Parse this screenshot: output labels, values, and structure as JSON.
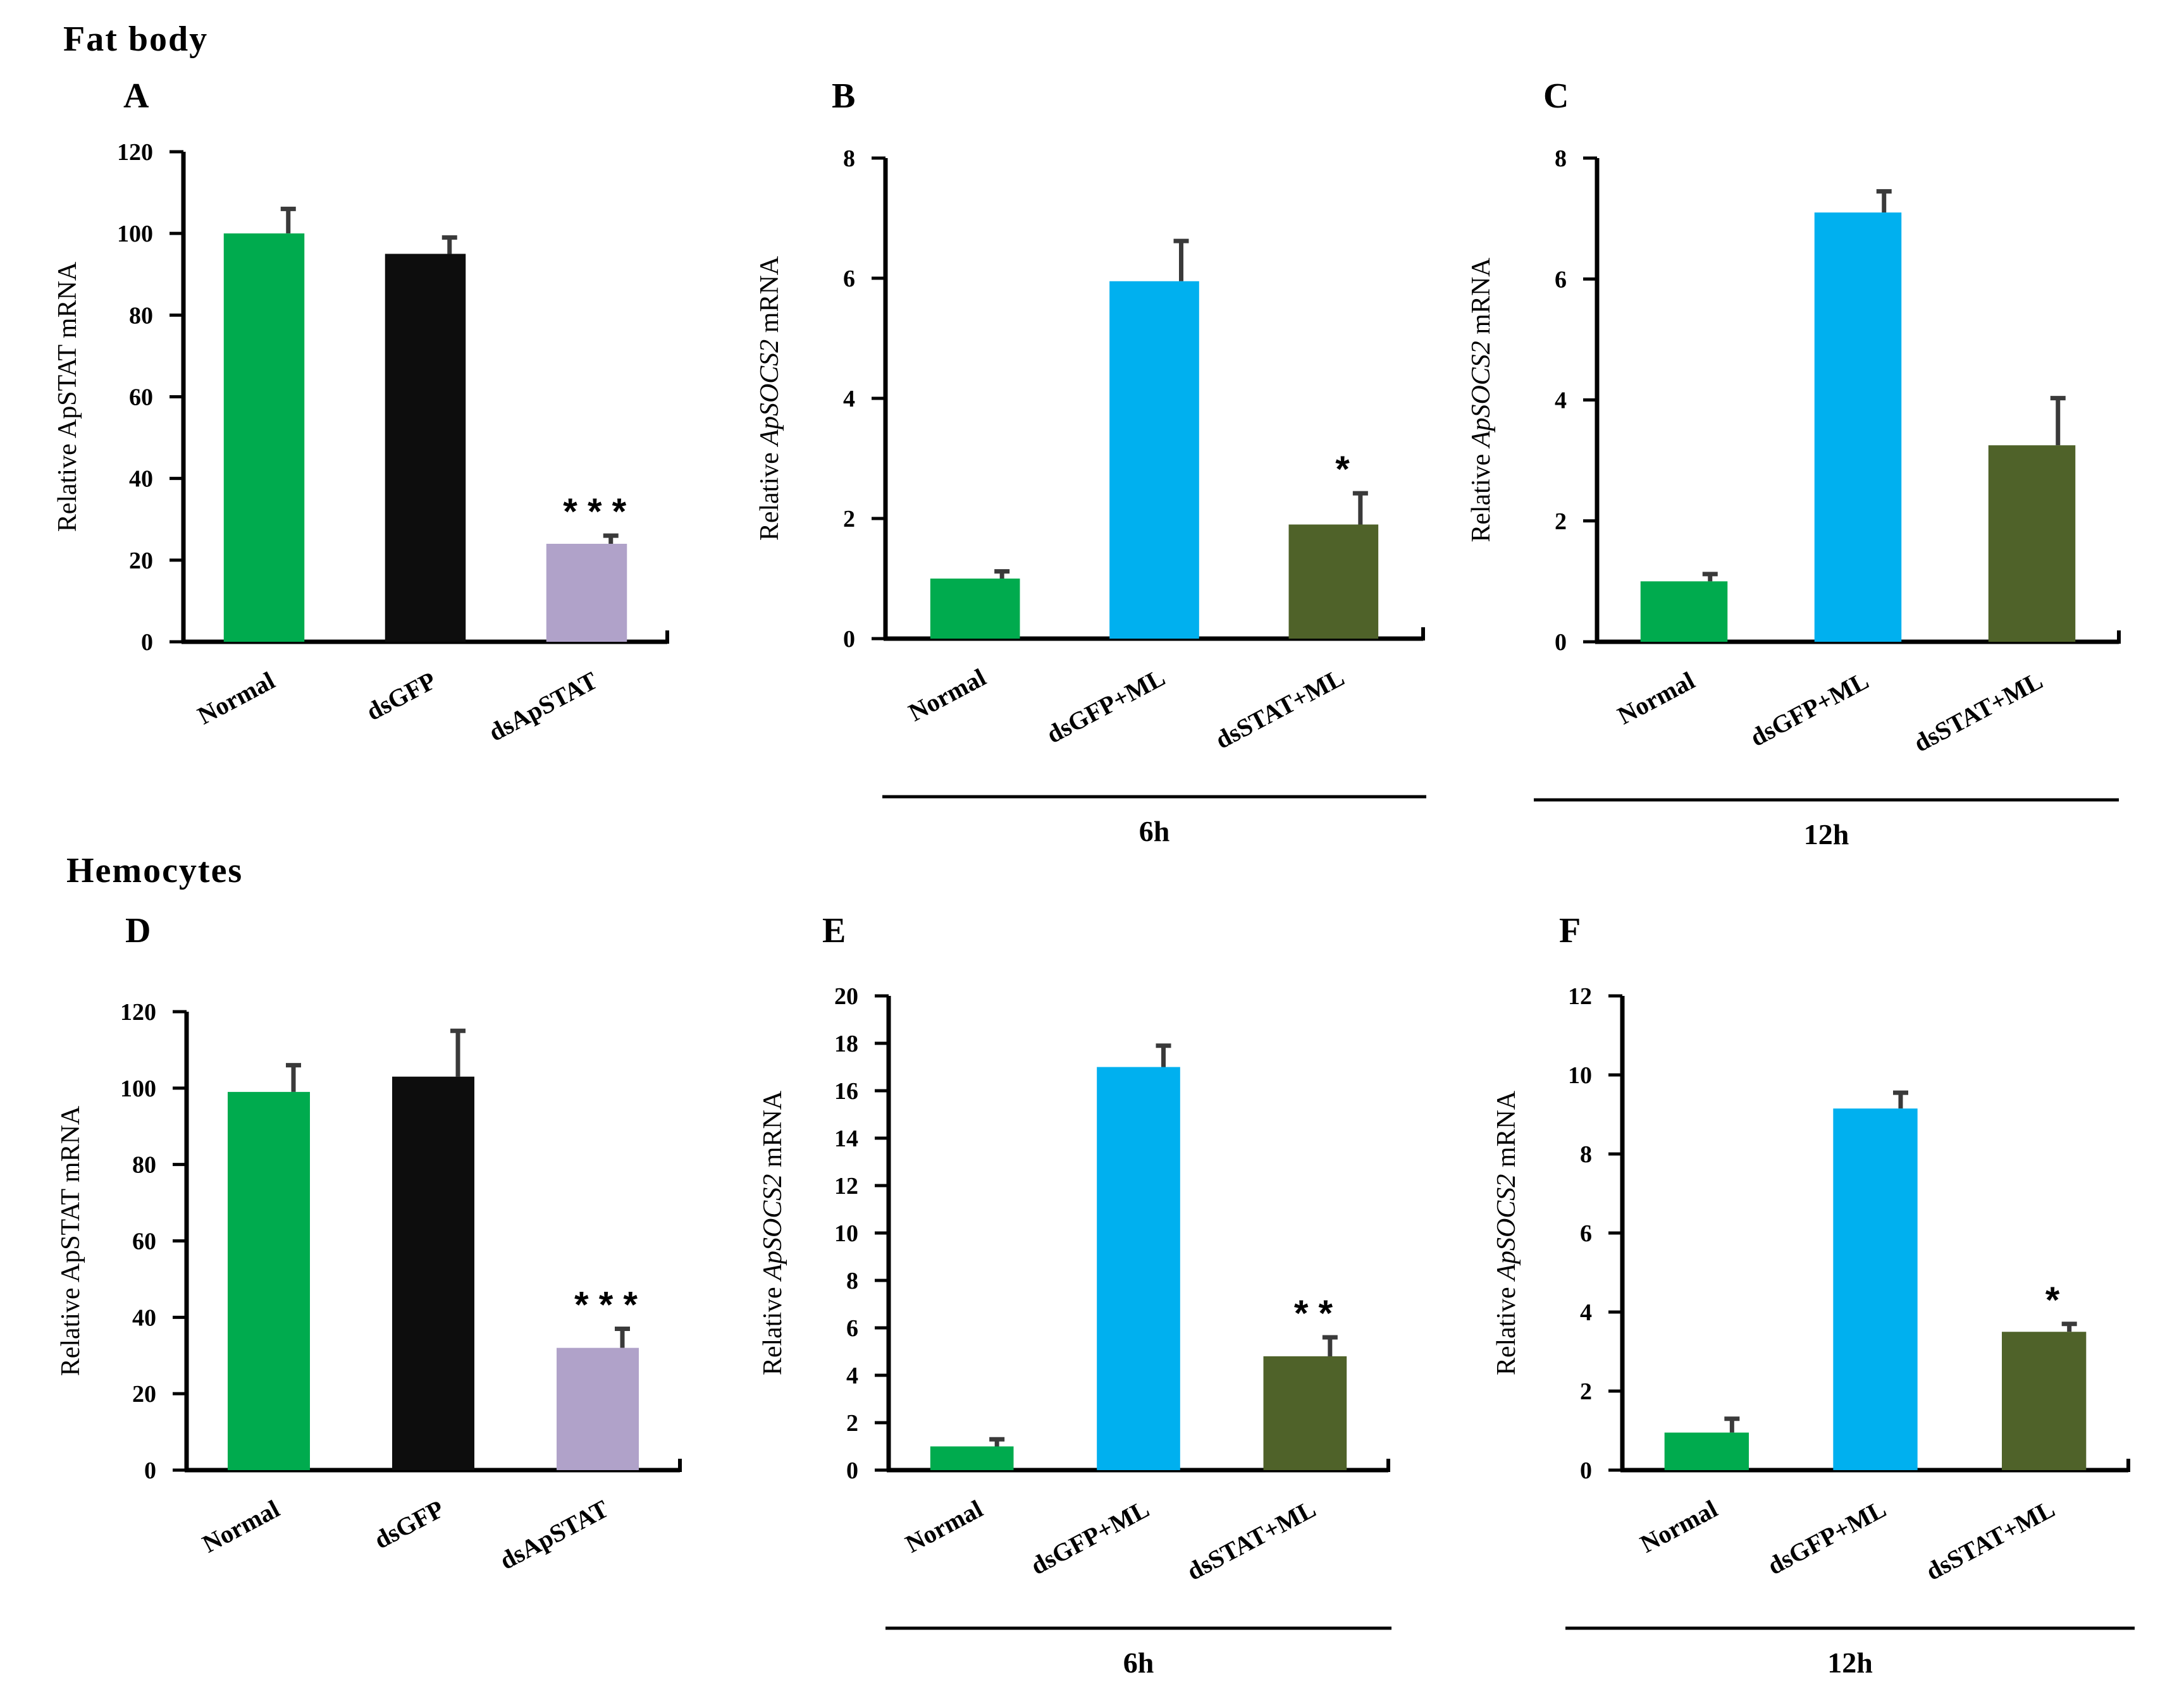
{
  "figure": {
    "sections": [
      {
        "key": "fat",
        "label": "Fat body"
      },
      {
        "key": "hemo",
        "label": "Hemocytes"
      }
    ]
  },
  "chart_data": [
    {
      "panel": "A",
      "section": "Fat body",
      "type": "bar",
      "ylabel_parts": [
        {
          "text": "Relative ApSTAT  mRNA",
          "italic": false
        }
      ],
      "categories": [
        "Normal",
        "dsGFP",
        "dsApSTAT"
      ],
      "values": [
        100,
        95,
        24
      ],
      "errors": [
        6,
        4,
        2
      ],
      "colors": [
        "#00ab4e",
        "#0d0d0d",
        "#b0a2c9"
      ],
      "significance": [
        "",
        "",
        "* * *"
      ],
      "ylim": [
        0,
        120
      ],
      "yticks": [
        0,
        20,
        40,
        60,
        80,
        100,
        120
      ],
      "timepoint": ""
    },
    {
      "panel": "B",
      "section": "Fat body",
      "type": "bar",
      "ylabel_parts": [
        {
          "text": "Relative ",
          "italic": false
        },
        {
          "text": "ApSOCS2",
          "italic": true
        },
        {
          "text": " mRNA",
          "italic": false
        }
      ],
      "categories": [
        "Normal",
        "dsGFP+ML",
        "dsSTAT+ML"
      ],
      "values": [
        1.0,
        5.95,
        1.9
      ],
      "errors": [
        0.12,
        0.67,
        0.52
      ],
      "colors": [
        "#00ab4e",
        "#00b0ef",
        "#4f6229"
      ],
      "significance": [
        "",
        "",
        "*"
      ],
      "ylim": [
        0,
        8
      ],
      "yticks": [
        0,
        2,
        4,
        6,
        8
      ],
      "timepoint": "6h"
    },
    {
      "panel": "C",
      "section": "Fat body",
      "type": "bar",
      "ylabel_parts": [
        {
          "text": "Relative ",
          "italic": false
        },
        {
          "text": "ApSOCS2",
          "italic": true
        },
        {
          "text": " mRNA",
          "italic": false
        }
      ],
      "categories": [
        "Normal",
        "dsGFP+ML",
        "dsSTAT+ML"
      ],
      "values": [
        1.0,
        7.1,
        3.25
      ],
      "errors": [
        0.12,
        0.35,
        0.78
      ],
      "colors": [
        "#00ab4e",
        "#00b0ef",
        "#4f6229"
      ],
      "significance": [
        "",
        "",
        ""
      ],
      "ylim": [
        0,
        8
      ],
      "yticks": [
        0,
        2,
        4,
        6,
        8
      ],
      "timepoint": "12h"
    },
    {
      "panel": "D",
      "section": "Hemocytes",
      "type": "bar",
      "ylabel_parts": [
        {
          "text": "Relative ApSTAT  mRNA",
          "italic": false
        }
      ],
      "categories": [
        "Normal",
        "dsGFP",
        "dsApSTAT"
      ],
      "values": [
        99,
        103,
        32
      ],
      "errors": [
        7,
        12,
        5
      ],
      "colors": [
        "#00ab4e",
        "#0d0d0d",
        "#b0a2c9"
      ],
      "significance": [
        "",
        "",
        "* * *"
      ],
      "ylim": [
        0,
        120
      ],
      "yticks": [
        0,
        20,
        40,
        60,
        80,
        100,
        120
      ],
      "timepoint": ""
    },
    {
      "panel": "E",
      "section": "Hemocytes",
      "type": "bar",
      "ylabel_parts": [
        {
          "text": "Relative ",
          "italic": false
        },
        {
          "text": "ApSOCS2",
          "italic": true
        },
        {
          "text": " mRNA",
          "italic": false
        }
      ],
      "categories": [
        "Normal",
        "dsGFP+ML",
        "dsSTAT+ML"
      ],
      "values": [
        1.0,
        17.0,
        4.8
      ],
      "errors": [
        0.3,
        0.9,
        0.8
      ],
      "colors": [
        "#00ab4e",
        "#00b0ef",
        "#4f6229"
      ],
      "significance": [
        "",
        "",
        "* *"
      ],
      "ylim": [
        0,
        20
      ],
      "yticks": [
        0,
        2,
        4,
        6,
        8,
        10,
        12,
        14,
        16,
        18,
        20
      ],
      "timepoint": "6h"
    },
    {
      "panel": "F",
      "section": "Hemocytes",
      "type": "bar",
      "ylabel_parts": [
        {
          "text": "Relative ",
          "italic": false
        },
        {
          "text": "ApSOCS2",
          "italic": true
        },
        {
          "text": " mRNA",
          "italic": false
        }
      ],
      "categories": [
        "Normal",
        "dsGFP+ML",
        "dsSTAT+ML"
      ],
      "values": [
        0.95,
        9.15,
        3.5
      ],
      "errors": [
        0.35,
        0.4,
        0.2
      ],
      "colors": [
        "#00ab4e",
        "#00b0ef",
        "#4f6229"
      ],
      "significance": [
        "",
        "",
        "*"
      ],
      "ylim": [
        0,
        12
      ],
      "yticks": [
        0,
        2,
        4,
        6,
        8,
        10,
        12
      ],
      "timepoint": "12h"
    }
  ]
}
